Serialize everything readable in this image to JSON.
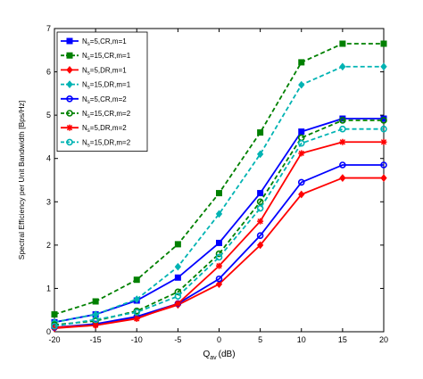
{
  "chart_data": {
    "type": "line",
    "xlabel_main": "Q",
    "xlabel_sub": "av",
    "xlabel_unit": "(dB)",
    "ylabel": "Spectral Efficiency per Unit Bandwidth [Bps/Hz]",
    "xlim": [
      -20,
      20
    ],
    "ylim": [
      0,
      7
    ],
    "xticks": [
      "-20",
      "-15",
      "-10",
      "-5",
      "0",
      "5",
      "10",
      "15",
      "20"
    ],
    "yticks": [
      "0",
      "1",
      "2",
      "3",
      "4",
      "5",
      "6",
      "7"
    ],
    "x": [
      -20,
      -15,
      -10,
      -5,
      0,
      5,
      10,
      15,
      20
    ],
    "grid": false,
    "legend_position": "top-left",
    "series": [
      {
        "name": "N =5,CR,m=1",
        "sub": "s",
        "color": "#0000ff",
        "dash": "solid",
        "marker": "square",
        "values": [
          0.22,
          0.4,
          0.72,
          1.25,
          2.05,
          3.2,
          4.62,
          4.92,
          4.92
        ]
      },
      {
        "name": "N =15,CR,m=1",
        "sub": "s",
        "color": "#008000",
        "dash": "dashed",
        "marker": "square",
        "values": [
          0.4,
          0.7,
          1.2,
          2.02,
          3.2,
          4.6,
          6.22,
          6.65,
          6.65
        ]
      },
      {
        "name": "N =5,DR,m=1",
        "sub": "s",
        "color": "#ff0000",
        "dash": "solid",
        "marker": "diamond",
        "values": [
          0.08,
          0.15,
          0.32,
          0.62,
          1.1,
          2.0,
          3.17,
          3.55,
          3.55
        ]
      },
      {
        "name": "N =15,DR,m=1",
        "sub": "s",
        "color": "#00b3b3",
        "dash": "dashed",
        "marker": "diamond",
        "values": [
          0.22,
          0.4,
          0.75,
          1.5,
          2.72,
          4.1,
          5.7,
          6.12,
          6.12
        ]
      },
      {
        "name": "N =5,CR,m=2",
        "sub": "s",
        "color": "#0000ff",
        "dash": "solid",
        "marker": "circle",
        "values": [
          0.1,
          0.18,
          0.35,
          0.65,
          1.22,
          2.22,
          3.45,
          3.85,
          3.85
        ]
      },
      {
        "name": "N =15,CR,m=2",
        "sub": "s",
        "color": "#008000",
        "dash": "dashed",
        "marker": "circle",
        "values": [
          0.16,
          0.25,
          0.48,
          0.92,
          1.8,
          3.0,
          4.48,
          4.88,
          4.88
        ]
      },
      {
        "name": "N =5,DR,m=2",
        "sub": "s",
        "color": "#ff0000",
        "dash": "solid",
        "marker": "star",
        "values": [
          0.1,
          0.15,
          0.3,
          0.65,
          1.52,
          2.55,
          4.12,
          4.38,
          4.38
        ]
      },
      {
        "name": "N =15,DR,m=2",
        "sub": "s",
        "color": "#00b3b3",
        "dash": "dashed",
        "marker": "circle",
        "values": [
          0.13,
          0.28,
          0.45,
          0.82,
          1.72,
          2.85,
          4.35,
          4.68,
          4.68
        ]
      }
    ]
  }
}
